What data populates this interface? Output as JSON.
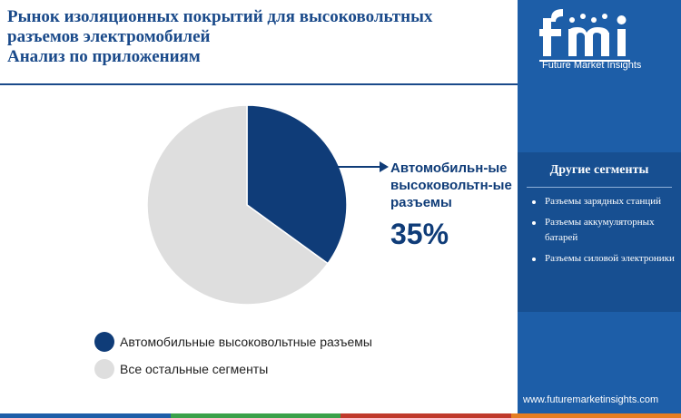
{
  "title": {
    "line1": "Рынок изоляционных покрытий для высоковольтных",
    "line2": "разъемов электромобилей",
    "line3": "Анализ по приложениям"
  },
  "chart_data": {
    "type": "pie",
    "slices": [
      {
        "label": "Автомобильные высоковольтные разъемы",
        "value": 35,
        "color": "#0f3c78"
      },
      {
        "label": "Все остальные сегменты",
        "value": 65,
        "color": "#dedede"
      }
    ],
    "callout": {
      "lines": [
        "Автомобильн-ые",
        "высоковольтн-ые",
        "разъемы"
      ],
      "value_text": "35%"
    }
  },
  "legend": {
    "items": [
      {
        "label": "Автомобильные высоковольтные разъемы",
        "color": "#0f3c78"
      },
      {
        "label": "Все остальные сегменты",
        "color": "#dedede"
      }
    ]
  },
  "sidebar": {
    "logo_text": "Future Market Insights",
    "segments_title": "Другие сегменты",
    "segments": [
      "Разъемы зарядных станций",
      "Разъемы аккумуляторных батарей",
      "Разъемы силовой электроники"
    ],
    "website": "www.futuremarketinsights.com"
  },
  "colors": {
    "primary": "#0f3c78",
    "sidebar": "#1d5ea8",
    "other": "#dedede",
    "bottom_bar": [
      "#1d5ea8",
      "#3aa14a",
      "#c0392b",
      "#e67e22"
    ]
  }
}
